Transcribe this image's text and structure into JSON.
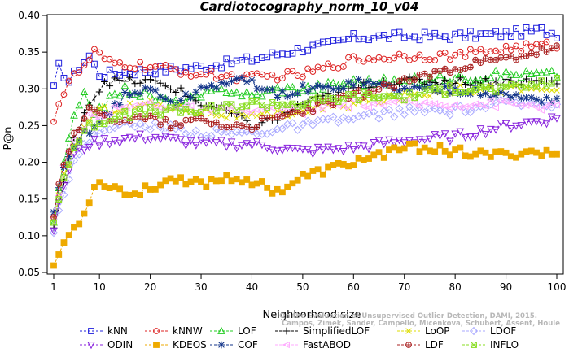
{
  "chart_data": {
    "type": "line",
    "title": "Cardiotocography_norm_10_v04",
    "xlabel": "Neighborhood size",
    "ylabel": "P@n",
    "xlim": [
      1,
      100
    ],
    "ylim": [
      0.05,
      0.4
    ],
    "xticks": [
      1,
      10,
      20,
      30,
      40,
      50,
      60,
      70,
      80,
      90,
      100
    ],
    "yticks": [
      0.05,
      0.1,
      0.15,
      0.2,
      0.25,
      0.3,
      0.35,
      0.4
    ],
    "ytick_labels": [
      "0.05",
      "0.10",
      "0.15",
      "0.20",
      "0.25",
      "0.30",
      "0.35",
      "0.40"
    ],
    "grid": false,
    "legend_position": "bottom",
    "watermark": [
      "Campos, Zimek, Sander, Campello, Micenkova, Schubert, Assent, Houle",
      "On the Evaluation of Unsupervised Outlier Detection, DAMI, 2015."
    ],
    "series": [
      {
        "name": "kNN",
        "color": "#2222dd",
        "marker": "square",
        "anchors": [
          [
            1,
            0.3
          ],
          [
            2,
            0.33
          ],
          [
            4,
            0.31
          ],
          [
            6,
            0.33
          ],
          [
            8,
            0.345
          ],
          [
            10,
            0.32
          ],
          [
            20,
            0.325
          ],
          [
            30,
            0.33
          ],
          [
            40,
            0.34
          ],
          [
            50,
            0.355
          ],
          [
            55,
            0.36
          ],
          [
            60,
            0.37
          ],
          [
            70,
            0.372
          ],
          [
            80,
            0.372
          ],
          [
            90,
            0.375
          ],
          [
            97,
            0.38
          ],
          [
            100,
            0.375
          ]
        ]
      },
      {
        "name": "kNNW",
        "color": "#dd2222",
        "marker": "circle",
        "anchors": [
          [
            1,
            0.26
          ],
          [
            2,
            0.28
          ],
          [
            4,
            0.31
          ],
          [
            7,
            0.33
          ],
          [
            9,
            0.35
          ],
          [
            12,
            0.335
          ],
          [
            20,
            0.33
          ],
          [
            30,
            0.32
          ],
          [
            40,
            0.315
          ],
          [
            50,
            0.32
          ],
          [
            55,
            0.33
          ],
          [
            60,
            0.34
          ],
          [
            70,
            0.345
          ],
          [
            80,
            0.345
          ],
          [
            90,
            0.355
          ],
          [
            100,
            0.36
          ]
        ]
      },
      {
        "name": "LOF",
        "color": "#22cc22",
        "marker": "triangle-up",
        "anchors": [
          [
            1,
            0.12
          ],
          [
            3,
            0.2
          ],
          [
            5,
            0.26
          ],
          [
            7,
            0.29
          ],
          [
            9,
            0.27
          ],
          [
            13,
            0.29
          ],
          [
            15,
            0.3
          ],
          [
            20,
            0.29
          ],
          [
            25,
            0.28
          ],
          [
            30,
            0.29
          ],
          [
            35,
            0.3
          ],
          [
            40,
            0.29
          ],
          [
            45,
            0.3
          ],
          [
            50,
            0.3
          ],
          [
            60,
            0.31
          ],
          [
            70,
            0.31
          ],
          [
            80,
            0.315
          ],
          [
            90,
            0.32
          ],
          [
            100,
            0.32
          ]
        ]
      },
      {
        "name": "SimplifiedLOF",
        "color": "#000000",
        "marker": "plus",
        "anchors": [
          [
            1,
            0.11
          ],
          [
            3,
            0.17
          ],
          [
            5,
            0.23
          ],
          [
            7,
            0.27
          ],
          [
            9,
            0.29
          ],
          [
            11,
            0.31
          ],
          [
            20,
            0.31
          ],
          [
            25,
            0.3
          ],
          [
            30,
            0.28
          ],
          [
            35,
            0.27
          ],
          [
            40,
            0.25
          ],
          [
            45,
            0.26
          ],
          [
            50,
            0.28
          ],
          [
            55,
            0.29
          ],
          [
            60,
            0.3
          ],
          [
            65,
            0.31
          ],
          [
            70,
            0.31
          ],
          [
            100,
            0.31
          ]
        ]
      },
      {
        "name": "LoOP",
        "color": "#dddd00",
        "marker": "x",
        "anchors": [
          [
            1,
            0.12
          ],
          [
            3,
            0.18
          ],
          [
            5,
            0.22
          ],
          [
            8,
            0.26
          ],
          [
            10,
            0.27
          ],
          [
            20,
            0.28
          ],
          [
            30,
            0.27
          ],
          [
            40,
            0.26
          ],
          [
            50,
            0.27
          ],
          [
            60,
            0.28
          ],
          [
            70,
            0.29
          ],
          [
            80,
            0.3
          ],
          [
            90,
            0.3
          ],
          [
            100,
            0.3
          ]
        ]
      },
      {
        "name": "LDOF",
        "color": "#aaaaff",
        "marker": "diamond",
        "anchors": [
          [
            1,
            0.11
          ],
          [
            3,
            0.16
          ],
          [
            5,
            0.2
          ],
          [
            8,
            0.23
          ],
          [
            12,
            0.25
          ],
          [
            20,
            0.25
          ],
          [
            30,
            0.24
          ],
          [
            40,
            0.24
          ],
          [
            50,
            0.25
          ],
          [
            60,
            0.26
          ],
          [
            70,
            0.27
          ],
          [
            80,
            0.27
          ],
          [
            90,
            0.28
          ],
          [
            100,
            0.28
          ]
        ]
      },
      {
        "name": "ODIN",
        "color": "#8822dd",
        "marker": "triangle-down",
        "anchors": [
          [
            1,
            0.11
          ],
          [
            3,
            0.17
          ],
          [
            5,
            0.21
          ],
          [
            8,
            0.225
          ],
          [
            12,
            0.23
          ],
          [
            20,
            0.235
          ],
          [
            30,
            0.225
          ],
          [
            40,
            0.225
          ],
          [
            50,
            0.215
          ],
          [
            60,
            0.22
          ],
          [
            70,
            0.23
          ],
          [
            80,
            0.235
          ],
          [
            90,
            0.25
          ],
          [
            100,
            0.26
          ]
        ]
      },
      {
        "name": "KDEOS",
        "color": "#eeaa00",
        "marker": "square-filled",
        "anchors": [
          [
            1,
            0.06
          ],
          [
            3,
            0.09
          ],
          [
            5,
            0.11
          ],
          [
            7,
            0.13
          ],
          [
            9,
            0.17
          ],
          [
            12,
            0.17
          ],
          [
            16,
            0.155
          ],
          [
            20,
            0.165
          ],
          [
            25,
            0.18
          ],
          [
            30,
            0.17
          ],
          [
            35,
            0.18
          ],
          [
            40,
            0.175
          ],
          [
            45,
            0.16
          ],
          [
            50,
            0.18
          ],
          [
            55,
            0.19
          ],
          [
            60,
            0.2
          ],
          [
            65,
            0.21
          ],
          [
            70,
            0.22
          ],
          [
            75,
            0.22
          ],
          [
            80,
            0.215
          ],
          [
            85,
            0.21
          ],
          [
            90,
            0.21
          ],
          [
            95,
            0.215
          ],
          [
            100,
            0.21
          ]
        ]
      },
      {
        "name": "COF",
        "color": "#113388",
        "marker": "star",
        "anchors": [
          [
            1,
            0.13
          ],
          [
            3,
            0.19
          ],
          [
            5,
            0.22
          ],
          [
            7,
            0.24
          ],
          [
            9,
            0.25
          ],
          [
            15,
            0.29
          ],
          [
            20,
            0.3
          ],
          [
            25,
            0.28
          ],
          [
            30,
            0.3
          ],
          [
            35,
            0.31
          ],
          [
            40,
            0.31
          ],
          [
            45,
            0.29
          ],
          [
            50,
            0.3
          ],
          [
            55,
            0.3
          ],
          [
            60,
            0.31
          ],
          [
            70,
            0.3
          ],
          [
            80,
            0.3
          ],
          [
            90,
            0.29
          ],
          [
            100,
            0.285
          ]
        ]
      },
      {
        "name": "FastABOD",
        "color": "#ffaaff",
        "marker": "triangle-left",
        "anchors": [
          [
            1,
            0.12
          ],
          [
            3,
            0.19
          ],
          [
            5,
            0.23
          ],
          [
            8,
            0.26
          ],
          [
            12,
            0.27
          ],
          [
            20,
            0.28
          ],
          [
            30,
            0.27
          ],
          [
            40,
            0.27
          ],
          [
            50,
            0.27
          ],
          [
            60,
            0.28
          ],
          [
            70,
            0.28
          ],
          [
            80,
            0.28
          ],
          [
            90,
            0.28
          ],
          [
            100,
            0.275
          ]
        ]
      },
      {
        "name": "LDF",
        "color": "#aa2222",
        "marker": "circle-plus",
        "anchors": [
          [
            1,
            0.13
          ],
          [
            3,
            0.2
          ],
          [
            5,
            0.24
          ],
          [
            8,
            0.27
          ],
          [
            12,
            0.26
          ],
          [
            20,
            0.26
          ],
          [
            25,
            0.25
          ],
          [
            30,
            0.26
          ],
          [
            35,
            0.25
          ],
          [
            40,
            0.25
          ],
          [
            45,
            0.26
          ],
          [
            50,
            0.27
          ],
          [
            55,
            0.28
          ],
          [
            60,
            0.29
          ],
          [
            65,
            0.3
          ],
          [
            70,
            0.31
          ],
          [
            75,
            0.32
          ],
          [
            80,
            0.33
          ],
          [
            90,
            0.34
          ],
          [
            100,
            0.355
          ]
        ]
      },
      {
        "name": "INFLO",
        "color": "#88dd22",
        "marker": "box-x",
        "anchors": [
          [
            1,
            0.12
          ],
          [
            3,
            0.18
          ],
          [
            5,
            0.22
          ],
          [
            8,
            0.25
          ],
          [
            12,
            0.26
          ],
          [
            20,
            0.27
          ],
          [
            30,
            0.27
          ],
          [
            40,
            0.28
          ],
          [
            50,
            0.28
          ],
          [
            60,
            0.29
          ],
          [
            70,
            0.29
          ],
          [
            80,
            0.3
          ],
          [
            90,
            0.3
          ],
          [
            100,
            0.31
          ]
        ]
      }
    ]
  }
}
